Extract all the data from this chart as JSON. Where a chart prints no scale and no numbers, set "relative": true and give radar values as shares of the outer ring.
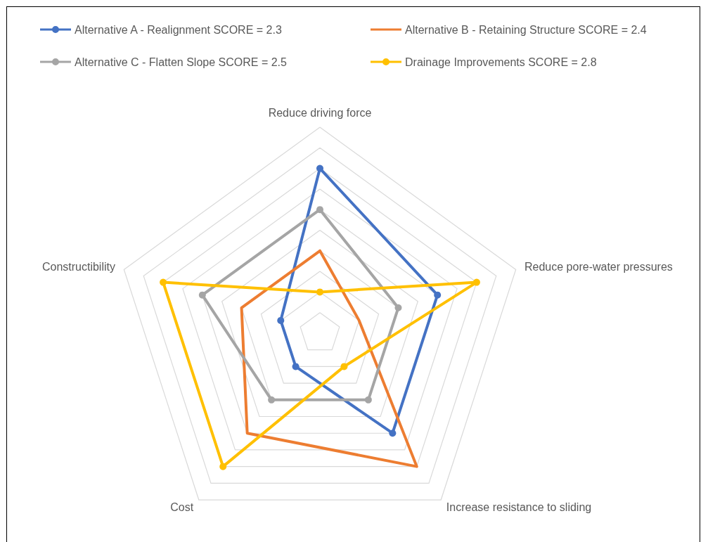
{
  "chart_data": {
    "type": "radar",
    "relative": true,
    "categories": [
      "Reduce driving force",
      "Reduce pore-water pressures",
      "Increase resistance to sliding",
      "Cost",
      "Constructibility"
    ],
    "series": [
      {
        "name": "Alternative A - Realignment SCORE = 2.3",
        "color": "#4472c4",
        "values": [
          0.8,
          0.6,
          0.6,
          0.2,
          0.2
        ]
      },
      {
        "name": "Alternative B - Retaining Structure SCORE = 2.4",
        "color": "#ed7d31",
        "values": [
          0.4,
          0.2,
          0.8,
          0.6,
          0.4
        ],
        "marker": "none"
      },
      {
        "name": "Alternative C - Flatten Slope SCORE = 2.5",
        "color": "#a5a5a5",
        "values": [
          0.6,
          0.4,
          0.4,
          0.4,
          0.6
        ]
      },
      {
        "name": "Drainage Improvements SCORE = 2.8",
        "color": "#ffc000",
        "values": [
          0.2,
          0.8,
          0.2,
          0.8,
          0.8
        ]
      }
    ],
    "grid": true,
    "legend": "top",
    "marker": "circle"
  }
}
